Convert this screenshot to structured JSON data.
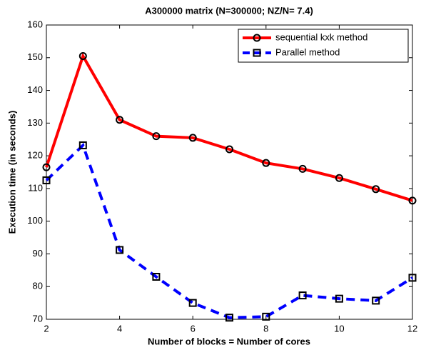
{
  "chart_data": {
    "type": "line",
    "title": "A300000 matrix (N=300000; NZ/N= 7.4)",
    "xlabel": "Number of blocks = Number of cores",
    "ylabel": "Execution time (in seconds)",
    "x": [
      2,
      3,
      4,
      5,
      6,
      7,
      8,
      9,
      10,
      11,
      12
    ],
    "series": [
      {
        "name": "sequential kxk method",
        "color": "#ff0000",
        "linestyle": "solid",
        "marker": "circle",
        "values": [
          116.5,
          150.5,
          131,
          126,
          125.5,
          122,
          117.8,
          116,
          113.2,
          109.8,
          106.3
        ]
      },
      {
        "name": "Parallel method",
        "color": "#0000ff",
        "linestyle": "dashed",
        "marker": "square",
        "values": [
          112.5,
          123.2,
          91.2,
          83,
          75,
          70.5,
          70.8,
          77.3,
          76.3,
          75.7,
          82.7
        ]
      }
    ],
    "xlim": [
      2,
      12
    ],
    "xticks": [
      2,
      4,
      6,
      8,
      10,
      12
    ],
    "ylim": [
      70,
      160
    ],
    "yticks": [
      70,
      80,
      90,
      100,
      110,
      120,
      130,
      140,
      150,
      160
    ],
    "grid": false,
    "legend": "upper right"
  }
}
